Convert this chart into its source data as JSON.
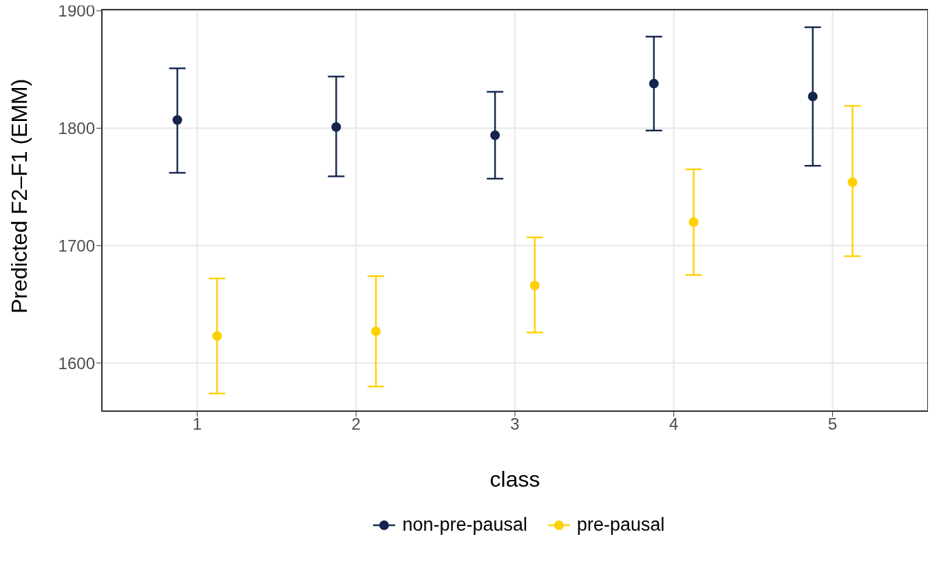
{
  "chart_data": {
    "type": "scatter",
    "xlabel": "class",
    "ylabel": "Predicted F2–F1 (EMM)",
    "categories": [
      "1",
      "2",
      "3",
      "4",
      "5"
    ],
    "series": [
      {
        "name": "non-pre-pausal",
        "color": "#13254b",
        "values": [
          1807,
          1801,
          1794,
          1838,
          1827
        ],
        "errors": [
          [
            1762,
            1851
          ],
          [
            1759,
            1844
          ],
          [
            1757,
            1831
          ],
          [
            1798,
            1878
          ],
          [
            1768,
            1886
          ]
        ]
      },
      {
        "name": "pre-pausal",
        "color": "#ffd100",
        "values": [
          1623,
          1627,
          1666,
          1720,
          1754
        ],
        "errors": [
          [
            1574,
            1672
          ],
          [
            1580,
            1674
          ],
          [
            1626,
            1707
          ],
          [
            1675,
            1765
          ],
          [
            1691,
            1819
          ]
        ]
      }
    ],
    "ylim": [
      1559,
      1901
    ],
    "yticks": [
      1600,
      1700,
      1800,
      1900
    ],
    "grid": true,
    "legend": "bottom",
    "marker": "circle"
  }
}
